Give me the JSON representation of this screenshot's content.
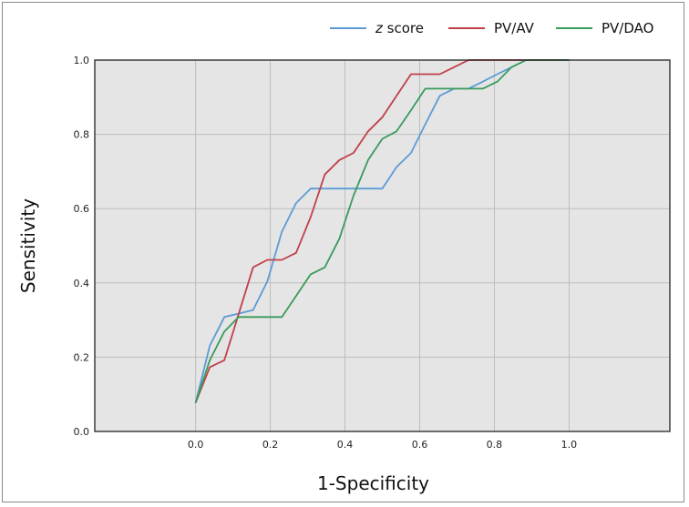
{
  "chart_data": {
    "type": "line",
    "title": "",
    "xlabel": "1-Specificity",
    "ylabel": "Sensitivity",
    "xlim": [
      -0.27,
      1.27
    ],
    "ylim": [
      0,
      1
    ],
    "x_ticks": [
      "0.0",
      "0.2",
      "0.4",
      "0.6",
      "0.8",
      "1.0"
    ],
    "y_ticks": [
      "0.0",
      "0.2",
      "0.4",
      "0.6",
      "0.8",
      "1.0"
    ],
    "grid": true,
    "legend_position": "top-right",
    "series": [
      {
        "name_italic": "z",
        "name_rest": " score",
        "color": "#5b9bd5",
        "x": [
          0.0,
          0.038,
          0.077,
          0.154,
          0.192,
          0.231,
          0.269,
          0.308,
          0.346,
          0.385,
          0.423,
          0.5,
          0.538,
          0.577,
          0.615,
          0.654,
          0.692,
          0.731,
          0.769,
          0.808,
          0.846,
          0.885,
          0.923,
          1.0
        ],
        "y": [
          0.077,
          0.231,
          0.308,
          0.327,
          0.404,
          0.538,
          0.615,
          0.654,
          0.654,
          0.654,
          0.654,
          0.654,
          0.712,
          0.75,
          0.827,
          0.904,
          0.923,
          0.923,
          0.942,
          0.962,
          0.981,
          1.0,
          1.0,
          1.0
        ]
      },
      {
        "name": "PV/AV",
        "color": "#c0404a",
        "x": [
          0.0,
          0.038,
          0.077,
          0.154,
          0.192,
          0.231,
          0.269,
          0.308,
          0.346,
          0.385,
          0.423,
          0.462,
          0.5,
          0.538,
          0.577,
          0.615,
          0.654,
          0.692,
          0.731,
          0.769,
          0.808,
          0.846,
          0.885,
          0.923,
          1.0
        ],
        "y": [
          0.077,
          0.173,
          0.192,
          0.442,
          0.462,
          0.462,
          0.481,
          0.577,
          0.692,
          0.731,
          0.75,
          0.808,
          0.846,
          0.904,
          0.962,
          0.962,
          0.962,
          0.981,
          1.0,
          1.0,
          1.0,
          1.0,
          1.0,
          1.0,
          1.0
        ]
      },
      {
        "name": "PV/DAO",
        "color": "#3a9a5a",
        "x": [
          0.0,
          0.038,
          0.077,
          0.115,
          0.154,
          0.192,
          0.231,
          0.269,
          0.308,
          0.346,
          0.385,
          0.423,
          0.462,
          0.5,
          0.538,
          0.577,
          0.615,
          0.654,
          0.692,
          0.731,
          0.769,
          0.808,
          0.846,
          0.885,
          0.923,
          1.0
        ],
        "y": [
          0.077,
          0.192,
          0.269,
          0.308,
          0.308,
          0.308,
          0.308,
          0.365,
          0.423,
          0.442,
          0.519,
          0.635,
          0.731,
          0.788,
          0.808,
          0.865,
          0.923,
          0.923,
          0.923,
          0.923,
          0.923,
          0.942,
          0.981,
          1.0,
          1.0,
          1.0
        ]
      }
    ]
  }
}
